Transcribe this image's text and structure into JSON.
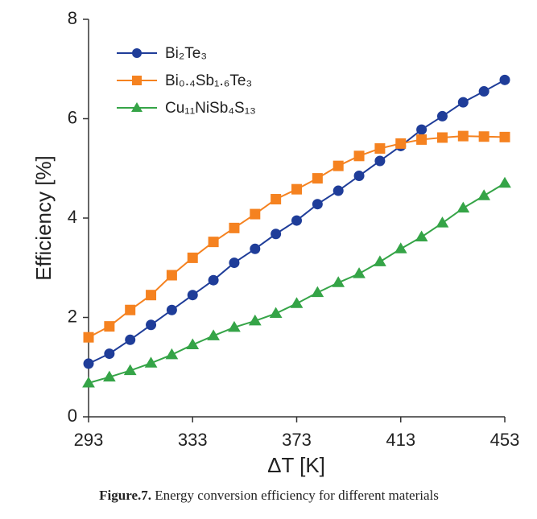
{
  "chart_data": {
    "type": "line",
    "xlabel": "ΔT [K]",
    "ylabel": "Efficiency [%]",
    "x": [
      293,
      301,
      309,
      317,
      325,
      333,
      341,
      349,
      357,
      365,
      373,
      381,
      389,
      397,
      405,
      413,
      421,
      429,
      437,
      445,
      453
    ],
    "series": [
      {
        "name": "Bi₂Te₃",
        "color": "#1f3d99",
        "marker": "circle",
        "values": [
          1.07,
          1.27,
          1.55,
          1.85,
          2.15,
          2.45,
          2.75,
          3.1,
          3.38,
          3.68,
          3.95,
          4.28,
          4.55,
          4.85,
          5.15,
          5.45,
          5.78,
          6.05,
          6.33,
          6.55,
          6.78
        ]
      },
      {
        "name": "Bi₀.₄Sb₁.₆Te₃",
        "color": "#f58220",
        "marker": "square",
        "values": [
          1.6,
          1.82,
          2.15,
          2.45,
          2.85,
          3.2,
          3.52,
          3.8,
          4.08,
          4.38,
          4.58,
          4.8,
          5.05,
          5.25,
          5.4,
          5.5,
          5.58,
          5.62,
          5.65,
          5.64,
          5.63
        ]
      },
      {
        "name": "Cu₁₁NiSb₄S₁₃",
        "color": "#35a447",
        "marker": "triangle",
        "values": [
          0.68,
          0.8,
          0.93,
          1.08,
          1.25,
          1.45,
          1.63,
          1.8,
          1.93,
          2.08,
          2.28,
          2.5,
          2.7,
          2.88,
          3.12,
          3.38,
          3.62,
          3.9,
          4.2,
          4.45,
          4.7
        ]
      }
    ],
    "xlim": [
      293,
      453
    ],
    "xticks": [
      293,
      333,
      373,
      413,
      453
    ],
    "ylim": [
      0,
      8
    ],
    "yticks": [
      0,
      2,
      4,
      6,
      8
    ],
    "legend": "upper left",
    "caption": {
      "label": "Figure.7.",
      "text": "Energy conversion efficiency for different materials"
    }
  }
}
